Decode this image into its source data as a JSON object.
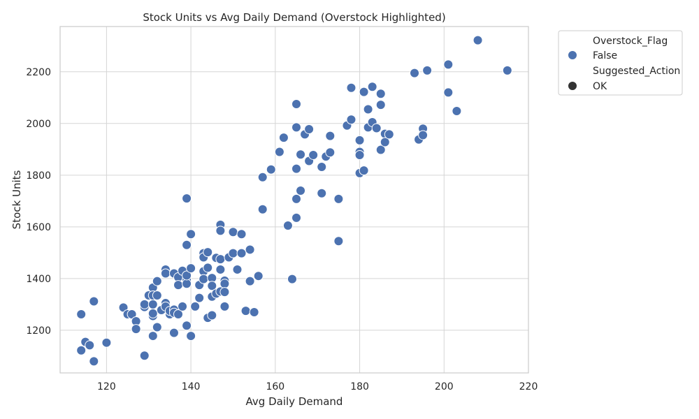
{
  "chart_data": {
    "type": "scatter",
    "title": "Stock Units vs Avg Daily Demand (Overstock Highlighted)",
    "xlabel": "Avg Daily Demand",
    "ylabel": "Stock Units",
    "xlim": [
      109,
      220
    ],
    "ylim": [
      1035,
      2375
    ],
    "xticks": [
      120,
      140,
      160,
      180,
      200,
      220
    ],
    "yticks": [
      1200,
      1400,
      1600,
      1800,
      2000,
      2200
    ],
    "grid": true,
    "colors": {
      "point": "#4c72b0",
      "point_edge": "#ffffff",
      "grid": "#d5d5d5",
      "frame": "#cccccc",
      "style_marker": "#333333"
    },
    "legend": {
      "placement": "outside-top-right",
      "entries": [
        {
          "label": "Overstock_Flag",
          "kind": "heading"
        },
        {
          "label": "False",
          "kind": "hue"
        },
        {
          "label": "Suggested_Action",
          "kind": "heading"
        },
        {
          "label": "OK",
          "kind": "style"
        }
      ]
    },
    "series": [
      {
        "name": "False",
        "points": [
          [
            114,
            1262
          ],
          [
            114,
            1122
          ],
          [
            115,
            1155
          ],
          [
            116,
            1142
          ],
          [
            117,
            1312
          ],
          [
            117,
            1080
          ],
          [
            120,
            1152
          ],
          [
            124,
            1288
          ],
          [
            125,
            1262
          ],
          [
            126,
            1262
          ],
          [
            127,
            1235
          ],
          [
            127,
            1205
          ],
          [
            129,
            1290
          ],
          [
            129,
            1300
          ],
          [
            129,
            1102
          ],
          [
            130,
            1335
          ],
          [
            131,
            1365
          ],
          [
            131,
            1335
          ],
          [
            131,
            1300
          ],
          [
            131,
            1255
          ],
          [
            131,
            1265
          ],
          [
            131,
            1178
          ],
          [
            132,
            1390
          ],
          [
            132,
            1335
          ],
          [
            132,
            1212
          ],
          [
            133,
            1278
          ],
          [
            134,
            1435
          ],
          [
            134,
            1420
          ],
          [
            134,
            1305
          ],
          [
            134,
            1292
          ],
          [
            135,
            1262
          ],
          [
            135,
            1275
          ],
          [
            136,
            1420
          ],
          [
            136,
            1280
          ],
          [
            136,
            1268
          ],
          [
            136,
            1190
          ],
          [
            137,
            1405
          ],
          [
            137,
            1375
          ],
          [
            137,
            1262
          ],
          [
            138,
            1430
          ],
          [
            138,
            1292
          ],
          [
            139,
            1710
          ],
          [
            139,
            1530
          ],
          [
            139,
            1395
          ],
          [
            139,
            1380
          ],
          [
            139,
            1412
          ],
          [
            139,
            1218
          ],
          [
            140,
            1572
          ],
          [
            140,
            1440
          ],
          [
            140,
            1178
          ],
          [
            141,
            1292
          ],
          [
            142,
            1375
          ],
          [
            142,
            1325
          ],
          [
            143,
            1498
          ],
          [
            143,
            1482
          ],
          [
            143,
            1428
          ],
          [
            143,
            1398
          ],
          [
            144,
            1502
          ],
          [
            144,
            1442
          ],
          [
            144,
            1248
          ],
          [
            145,
            1402
          ],
          [
            145,
            1372
          ],
          [
            145,
            1330
          ],
          [
            145,
            1258
          ],
          [
            146,
            1480
          ],
          [
            146,
            1342
          ],
          [
            147,
            1608
          ],
          [
            147,
            1585
          ],
          [
            147,
            1475
          ],
          [
            147,
            1435
          ],
          [
            147,
            1350
          ],
          [
            148,
            1392
          ],
          [
            148,
            1380
          ],
          [
            148,
            1348
          ],
          [
            148,
            1292
          ],
          [
            149,
            1482
          ],
          [
            150,
            1580
          ],
          [
            150,
            1498
          ],
          [
            151,
            1435
          ],
          [
            152,
            1572
          ],
          [
            152,
            1498
          ],
          [
            153,
            1275
          ],
          [
            154,
            1512
          ],
          [
            154,
            1390
          ],
          [
            155,
            1270
          ],
          [
            156,
            1410
          ],
          [
            157,
            1792
          ],
          [
            157,
            1668
          ],
          [
            159,
            1822
          ],
          [
            161,
            1890
          ],
          [
            162,
            1945
          ],
          [
            163,
            1605
          ],
          [
            164,
            1398
          ],
          [
            165,
            2075
          ],
          [
            165,
            1985
          ],
          [
            165,
            1825
          ],
          [
            165,
            1708
          ],
          [
            165,
            1635
          ],
          [
            166,
            1880
          ],
          [
            166,
            1740
          ],
          [
            167,
            1958
          ],
          [
            168,
            1978
          ],
          [
            168,
            1855
          ],
          [
            169,
            1878
          ],
          [
            171,
            1832
          ],
          [
            171,
            1730
          ],
          [
            172,
            1872
          ],
          [
            173,
            1952
          ],
          [
            173,
            1888
          ],
          [
            175,
            1708
          ],
          [
            175,
            1545
          ],
          [
            177,
            1992
          ],
          [
            178,
            2138
          ],
          [
            178,
            2015
          ],
          [
            180,
            1935
          ],
          [
            180,
            1890
          ],
          [
            180,
            1878
          ],
          [
            180,
            1808
          ],
          [
            181,
            2122
          ],
          [
            181,
            1818
          ],
          [
            182,
            2055
          ],
          [
            182,
            1985
          ],
          [
            183,
            2142
          ],
          [
            183,
            2005
          ],
          [
            184,
            1982
          ],
          [
            185,
            2115
          ],
          [
            185,
            2072
          ],
          [
            185,
            1898
          ],
          [
            186,
            1960
          ],
          [
            186,
            1928
          ],
          [
            187,
            1958
          ],
          [
            193,
            2195
          ],
          [
            194,
            1938
          ],
          [
            195,
            1980
          ],
          [
            195,
            1955
          ],
          [
            196,
            2205
          ],
          [
            201,
            2228
          ],
          [
            201,
            2120
          ],
          [
            203,
            2048
          ],
          [
            208,
            2322
          ],
          [
            215,
            2205
          ]
        ]
      }
    ]
  }
}
